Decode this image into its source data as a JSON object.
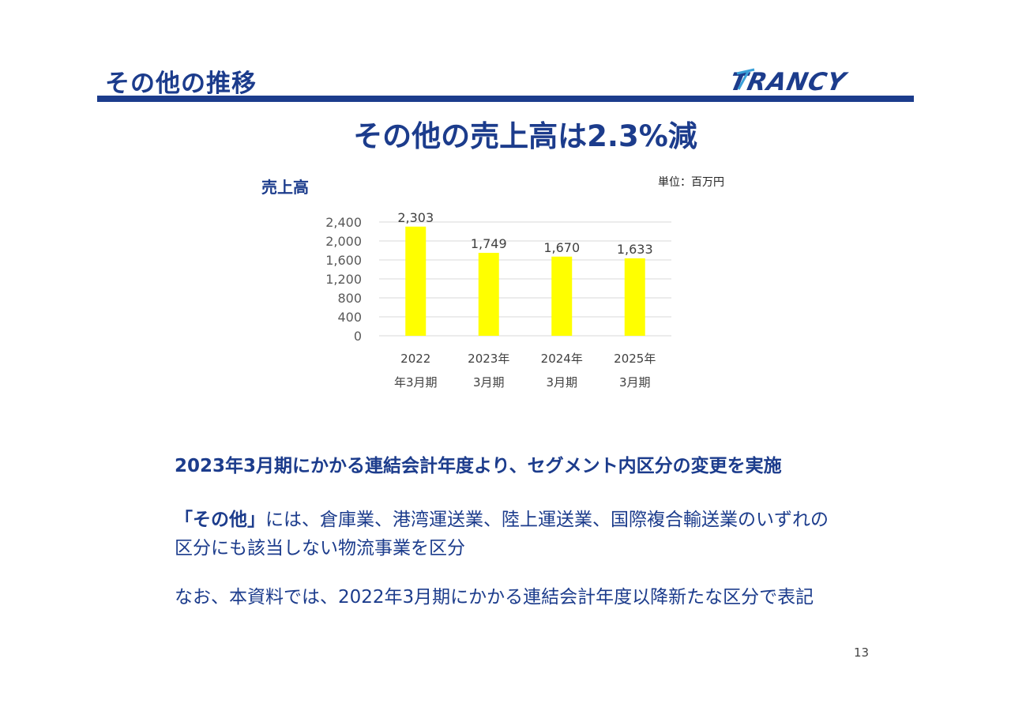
{
  "header": {
    "section_title": "その他の推移",
    "logo_text": "TRANCY",
    "accent_color": "#1c3c8c"
  },
  "headline": "その他の売上高は2.3%減",
  "chart_label": "売上高",
  "unit_label": "単位：百万円",
  "chart_data": {
    "type": "bar",
    "categories": [
      [
        "2022",
        "年3月期"
      ],
      [
        "2023年",
        "3月期"
      ],
      [
        "2024年",
        "3月期"
      ],
      [
        "2025年",
        "3月期"
      ]
    ],
    "values": [
      2303,
      1749,
      1670,
      1633
    ],
    "value_labels": [
      "2,303",
      "1,749",
      "1,670",
      "1,633"
    ],
    "yticks": [
      "0",
      "400",
      "800",
      "1,200",
      "1,600",
      "2,000",
      "2,400"
    ],
    "ylim": [
      0,
      2400
    ],
    "bar_color": "#ffff00",
    "grid": true,
    "legend": "none"
  },
  "notes": {
    "line1": "2023年3月期にかかる連結会計年度より、セグメント内区分の変更を実施",
    "line2_bold": "「その他」",
    "line2_rest": "には、倉庫業、港湾運送業、陸上運送業、国際複合輸送業のいずれの",
    "line3": "区分にも該当しない物流事業を区分",
    "line4": "なお、本資料では、2022年3月期にかかる連結会計年度以降新たな区分で表記"
  },
  "page_number": "13"
}
